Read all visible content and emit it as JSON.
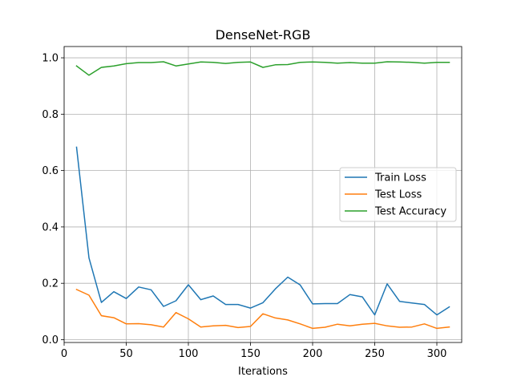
{
  "chart_data": {
    "type": "line",
    "title": "DenseNet-RGB",
    "xlabel": "Iterations",
    "ylabel": "",
    "xlim": [
      0,
      320
    ],
    "ylim": [
      -0.01,
      1.04
    ],
    "xticks": [
      0,
      50,
      100,
      150,
      200,
      250,
      300
    ],
    "yticks": [
      0.0,
      0.2,
      0.4,
      0.6,
      0.8,
      1.0
    ],
    "xtick_labels": [
      "0",
      "50",
      "100",
      "150",
      "200",
      "250",
      "300"
    ],
    "ytick_labels": [
      "0.0",
      "0.2",
      "0.4",
      "0.6",
      "0.8",
      "1.0"
    ],
    "grid": true,
    "legend_position": "center-right",
    "x": [
      10,
      20,
      30,
      40,
      50,
      60,
      70,
      80,
      90,
      100,
      110,
      120,
      130,
      140,
      150,
      160,
      170,
      180,
      190,
      200,
      210,
      220,
      230,
      240,
      250,
      260,
      270,
      280,
      290,
      300,
      310
    ],
    "series": [
      {
        "name": "Train Loss",
        "color": "#1f77b4",
        "values": [
          0.683,
          0.29,
          0.132,
          0.17,
          0.146,
          0.187,
          0.177,
          0.118,
          0.138,
          0.195,
          0.142,
          0.155,
          0.125,
          0.125,
          0.112,
          0.131,
          0.18,
          0.222,
          0.194,
          0.127,
          0.128,
          0.128,
          0.16,
          0.152,
          0.088,
          0.198,
          0.136,
          0.13,
          0.125,
          0.088,
          0.116
        ]
      },
      {
        "name": "Test Loss",
        "color": "#ff7f0e",
        "values": [
          0.178,
          0.158,
          0.085,
          0.078,
          0.056,
          0.057,
          0.053,
          0.045,
          0.096,
          0.074,
          0.045,
          0.049,
          0.051,
          0.043,
          0.047,
          0.092,
          0.077,
          0.07,
          0.056,
          0.04,
          0.044,
          0.055,
          0.049,
          0.055,
          0.058,
          0.049,
          0.044,
          0.045,
          0.056,
          0.04,
          0.045
        ]
      },
      {
        "name": "Test Accuracy",
        "color": "#2ca02c",
        "values": [
          0.971,
          0.938,
          0.966,
          0.971,
          0.979,
          0.983,
          0.983,
          0.986,
          0.971,
          0.978,
          0.985,
          0.984,
          0.98,
          0.984,
          0.985,
          0.966,
          0.975,
          0.976,
          0.984,
          0.985,
          0.984,
          0.981,
          0.983,
          0.981,
          0.981,
          0.986,
          0.985,
          0.984,
          0.981,
          0.984,
          0.984
        ]
      }
    ]
  }
}
